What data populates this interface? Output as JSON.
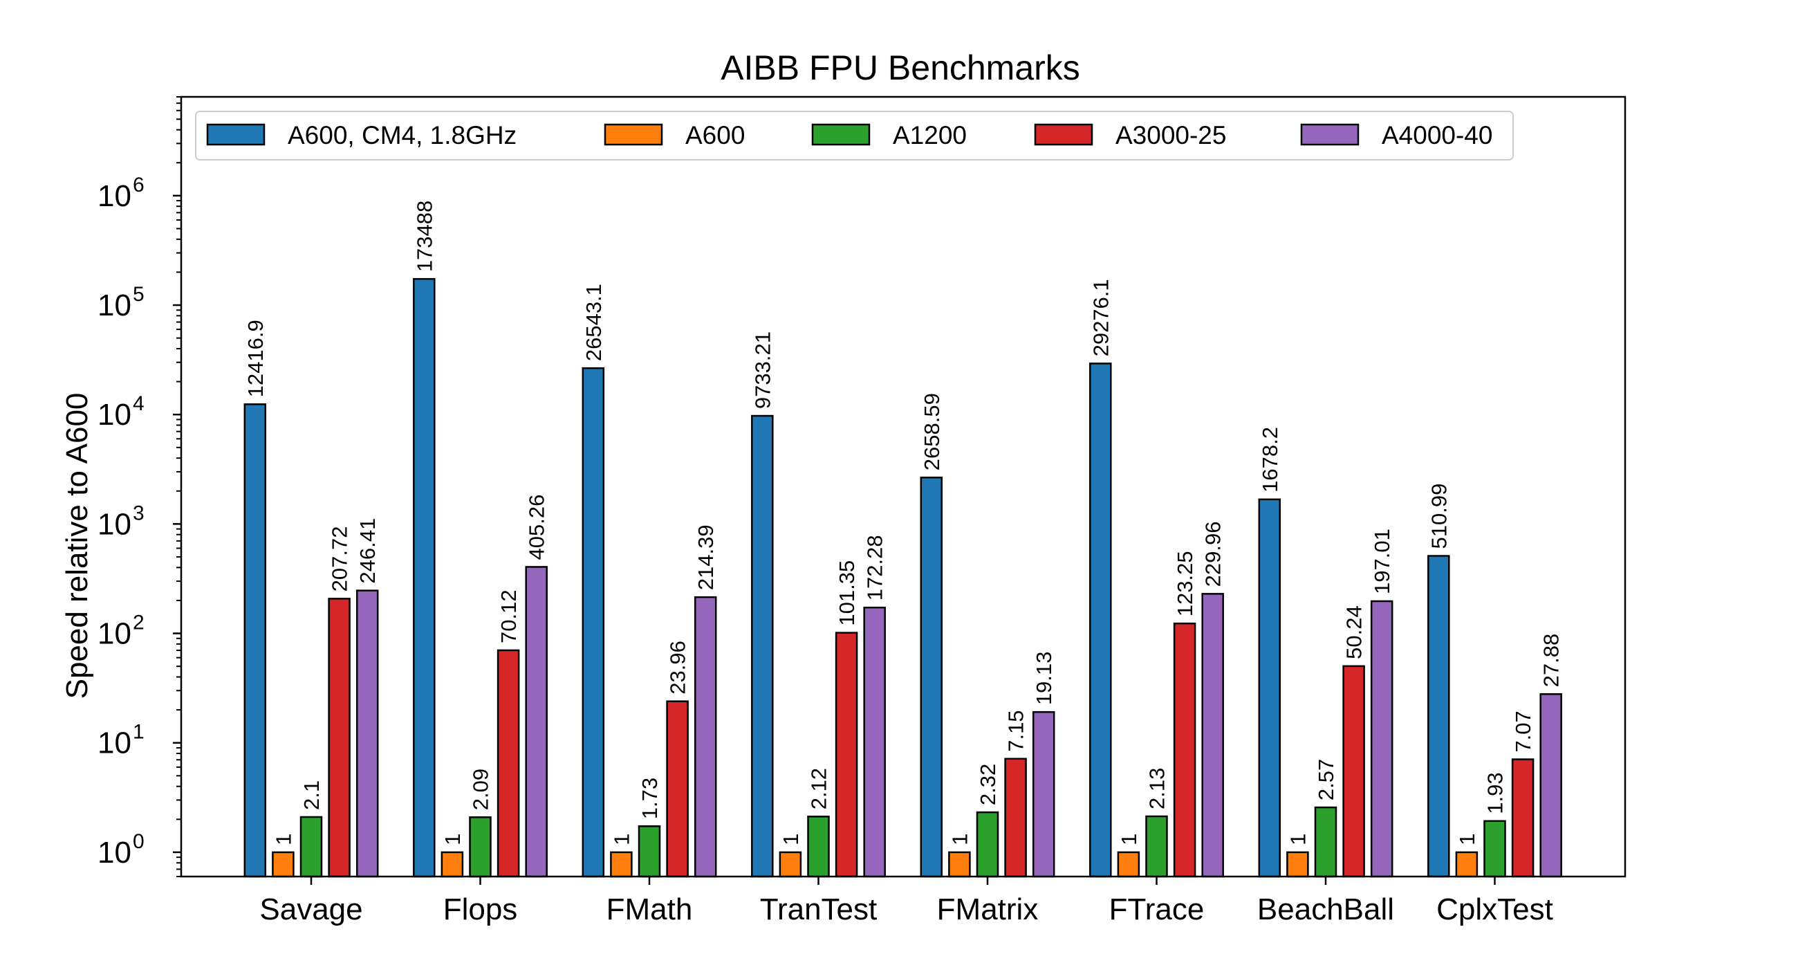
{
  "chart_data": {
    "type": "bar",
    "title": "AIBB FPU Benchmarks",
    "xlabel": "",
    "ylabel": "Speed relative to A600",
    "yscale": "log",
    "ylim": [
      0.6,
      8000000
    ],
    "yticks": [
      {
        "base": "10",
        "exp": "0",
        "value": 1
      },
      {
        "base": "10",
        "exp": "1",
        "value": 10
      },
      {
        "base": "10",
        "exp": "2",
        "value": 100
      },
      {
        "base": "10",
        "exp": "3",
        "value": 1000
      },
      {
        "base": "10",
        "exp": "4",
        "value": 10000
      },
      {
        "base": "10",
        "exp": "5",
        "value": 100000
      },
      {
        "base": "10",
        "exp": "6",
        "value": 1000000
      }
    ],
    "grid": false,
    "legend_position": "top",
    "categories": [
      "Savage",
      "Flops",
      "FMath",
      "TranTest",
      "FMatrix",
      "FTrace",
      "BeachBall",
      "CplxTest"
    ],
    "series": [
      {
        "name": "A600, CM4, 1.8GHz",
        "color": "#1f77b4",
        "values": [
          12416.9,
          173488,
          26543.1,
          9733.21,
          2658.59,
          29276.1,
          1678.2,
          510.99
        ],
        "labels": [
          "12416.9",
          "173488",
          "26543.1",
          "9733.21",
          "2658.59",
          "29276.1",
          "1678.2",
          "510.99"
        ]
      },
      {
        "name": "A600",
        "color": "#ff7f0e",
        "values": [
          1,
          1,
          1,
          1,
          1,
          1,
          1,
          1
        ],
        "labels": [
          "1",
          "1",
          "1",
          "1",
          "1",
          "1",
          "1",
          "1"
        ]
      },
      {
        "name": "A1200",
        "color": "#2ca02c",
        "values": [
          2.1,
          2.09,
          1.73,
          2.12,
          2.32,
          2.13,
          2.57,
          1.93
        ],
        "labels": [
          "2.1",
          "2.09",
          "1.73",
          "2.12",
          "2.32",
          "2.13",
          "2.57",
          "1.93"
        ]
      },
      {
        "name": "A3000-25",
        "color": "#d62728",
        "values": [
          207.72,
          70.12,
          23.96,
          101.35,
          7.15,
          123.25,
          50.24,
          7.07
        ],
        "labels": [
          "207.72",
          "70.12",
          "23.96",
          "101.35",
          "7.15",
          "123.25",
          "50.24",
          "7.07"
        ]
      },
      {
        "name": "A4000-40",
        "color": "#9467bd",
        "values": [
          246.41,
          405.26,
          214.39,
          172.28,
          19.13,
          229.96,
          197.01,
          27.88
        ],
        "labels": [
          "246.41",
          "405.26",
          "214.39",
          "172.28",
          "19.13",
          "229.96",
          "197.01",
          "27.88"
        ]
      }
    ]
  }
}
